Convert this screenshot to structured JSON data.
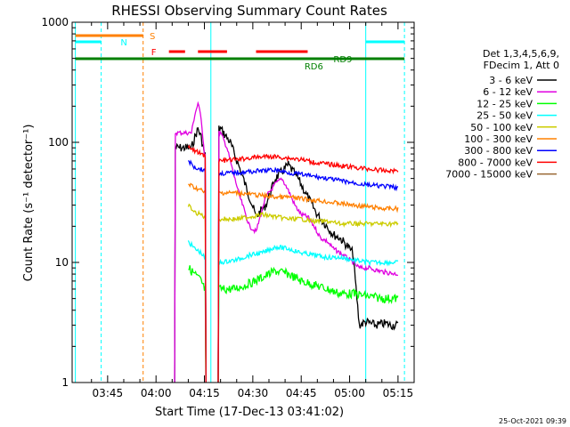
{
  "chart_data": {
    "type": "line",
    "title": "RHESSI Observing Summary Count Rates",
    "xlabel": "Start Time (17-Dec-13 03:41:02)",
    "ylabel": "Count Rate (s⁻¹ detector⁻¹)",
    "yscale": "log",
    "ylim": [
      1,
      1000
    ],
    "xlim_minutes_after_0341": [
      -7,
      99
    ],
    "x_ticks": [
      {
        "label": "03:45",
        "minute": 4
      },
      {
        "label": "04:00",
        "minute": 19
      },
      {
        "label": "04:15",
        "minute": 34
      },
      {
        "label": "04:30",
        "minute": 49
      },
      {
        "label": "04:45",
        "minute": 64
      },
      {
        "label": "05:00",
        "minute": 79
      },
      {
        "label": "05:15",
        "minute": 94
      }
    ],
    "y_ticks": [
      {
        "label": "1",
        "value": 1
      },
      {
        "label": "10",
        "value": 10
      },
      {
        "label": "100",
        "value": 100
      },
      {
        "label": "1000",
        "value": 1000
      }
    ],
    "legend_header": [
      "Det 1,3,4,5,6,9,",
      "FDecim 1, Att 0"
    ],
    "legend_position": "right",
    "series": [
      {
        "name": "3 - 6 keV",
        "color": "#000000",
        "points": [
          [
            19,
            0
          ],
          [
            20,
            0
          ],
          [
            30,
            90
          ],
          [
            31,
            110
          ],
          [
            32,
            130
          ],
          [
            33,
            110
          ],
          [
            34,
            80
          ],
          [
            35,
            0
          ],
          [
            38,
            0
          ],
          [
            39,
            130
          ],
          [
            42,
            100
          ],
          [
            45,
            60
          ],
          [
            48,
            35
          ],
          [
            50,
            24
          ],
          [
            53,
            30
          ],
          [
            56,
            50
          ],
          [
            60,
            65
          ],
          [
            63,
            50
          ],
          [
            66,
            35
          ],
          [
            69,
            25
          ],
          [
            72,
            20
          ],
          [
            74,
            17
          ],
          [
            76,
            16
          ],
          [
            78,
            14
          ],
          [
            80,
            12
          ],
          [
            82,
            3
          ],
          [
            84,
            3.2
          ],
          [
            87,
            3
          ],
          [
            90,
            3.1
          ],
          [
            92,
            3
          ],
          [
            94,
            3
          ]
        ]
      },
      {
        "name": "6 - 12 keV",
        "color": "#e000e0",
        "points": [
          [
            19,
            0
          ],
          [
            20,
            0
          ],
          [
            30,
            120
          ],
          [
            31,
            170
          ],
          [
            32,
            210
          ],
          [
            33,
            160
          ],
          [
            34,
            80
          ],
          [
            35,
            0
          ],
          [
            38,
            0
          ],
          [
            39,
            120
          ],
          [
            41,
            90
          ],
          [
            43,
            55
          ],
          [
            45,
            35
          ],
          [
            48,
            20
          ],
          [
            50,
            18
          ],
          [
            53,
            35
          ],
          [
            56,
            45
          ],
          [
            58,
            50
          ],
          [
            60,
            40
          ],
          [
            62,
            30
          ],
          [
            64,
            25
          ],
          [
            66,
            24
          ],
          [
            68,
            20
          ],
          [
            70,
            16
          ],
          [
            72,
            15
          ],
          [
            74,
            13
          ],
          [
            76,
            12
          ],
          [
            78,
            11
          ],
          [
            80,
            10
          ],
          [
            82,
            9
          ],
          [
            85,
            9
          ],
          [
            88,
            8.5
          ],
          [
            91,
            8.2
          ],
          [
            94,
            8
          ]
        ]
      },
      {
        "name": "12 - 25 keV",
        "color": "#00ff00",
        "points": [
          [
            29,
            9
          ],
          [
            31,
            8
          ],
          [
            33,
            7
          ],
          [
            34,
            6
          ],
          [
            35,
            0
          ],
          [
            38,
            0
          ],
          [
            39,
            6
          ],
          [
            43,
            6
          ],
          [
            47,
            6.5
          ],
          [
            52,
            7.5
          ],
          [
            56,
            8.5
          ],
          [
            60,
            8
          ],
          [
            64,
            7
          ],
          [
            68,
            6.5
          ],
          [
            72,
            6
          ],
          [
            76,
            5.5
          ],
          [
            80,
            5.5
          ],
          [
            85,
            5.2
          ],
          [
            90,
            5
          ],
          [
            94,
            5
          ]
        ]
      },
      {
        "name": "25 - 50 keV",
        "color": "#00ffff",
        "points": [
          [
            29,
            15
          ],
          [
            31,
            13
          ],
          [
            33,
            12
          ],
          [
            34,
            11
          ],
          [
            35,
            0
          ],
          [
            38,
            0
          ],
          [
            39,
            10
          ],
          [
            44,
            10.5
          ],
          [
            48,
            11.5
          ],
          [
            52,
            12
          ],
          [
            56,
            13.5
          ],
          [
            60,
            13
          ],
          [
            64,
            12
          ],
          [
            68,
            11.5
          ],
          [
            72,
            11
          ],
          [
            76,
            11
          ],
          [
            80,
            10.5
          ],
          [
            85,
            10
          ],
          [
            90,
            10
          ],
          [
            94,
            10
          ]
        ]
      },
      {
        "name": "50 - 100 keV",
        "color": "#cccc00",
        "points": [
          [
            29,
            30
          ],
          [
            31,
            26
          ],
          [
            33,
            25
          ],
          [
            34,
            24
          ],
          [
            35,
            0
          ],
          [
            38,
            0
          ],
          [
            39,
            23
          ],
          [
            44,
            23
          ],
          [
            48,
            24
          ],
          [
            52,
            25
          ],
          [
            56,
            24
          ],
          [
            60,
            23
          ],
          [
            64,
            23
          ],
          [
            68,
            22
          ],
          [
            72,
            22
          ],
          [
            76,
            21
          ],
          [
            80,
            21
          ],
          [
            85,
            21
          ],
          [
            90,
            21
          ],
          [
            94,
            21
          ]
        ]
      },
      {
        "name": "100 - 300 keV",
        "color": "#ff8000",
        "points": [
          [
            29,
            45
          ],
          [
            31,
            42
          ],
          [
            33,
            40
          ],
          [
            34,
            38
          ],
          [
            35,
            0
          ],
          [
            38,
            0
          ],
          [
            39,
            38
          ],
          [
            44,
            38
          ],
          [
            48,
            37
          ],
          [
            52,
            36
          ],
          [
            56,
            35
          ],
          [
            60,
            35
          ],
          [
            64,
            34
          ],
          [
            68,
            33
          ],
          [
            72,
            32
          ],
          [
            76,
            31
          ],
          [
            80,
            30
          ],
          [
            85,
            29
          ],
          [
            90,
            28
          ],
          [
            94,
            28
          ]
        ]
      },
      {
        "name": "300 - 800 keV",
        "color": "#0000ff",
        "points": [
          [
            29,
            70
          ],
          [
            31,
            62
          ],
          [
            33,
            60
          ],
          [
            34,
            58
          ],
          [
            35,
            0
          ],
          [
            38,
            0
          ],
          [
            39,
            55
          ],
          [
            44,
            56
          ],
          [
            48,
            57
          ],
          [
            52,
            58
          ],
          [
            56,
            59
          ],
          [
            60,
            56
          ],
          [
            64,
            54
          ],
          [
            68,
            52
          ],
          [
            72,
            50
          ],
          [
            76,
            48
          ],
          [
            80,
            46
          ],
          [
            85,
            44
          ],
          [
            90,
            43
          ],
          [
            94,
            42
          ]
        ]
      },
      {
        "name": "800 - 7000 keV",
        "color": "#ff0000",
        "points": [
          [
            29,
            90
          ],
          [
            31,
            85
          ],
          [
            33,
            80
          ],
          [
            34,
            78
          ],
          [
            35,
            0
          ],
          [
            38,
            0
          ],
          [
            39,
            70
          ],
          [
            44,
            72
          ],
          [
            48,
            74
          ],
          [
            52,
            76
          ],
          [
            56,
            76
          ],
          [
            60,
            74
          ],
          [
            64,
            72
          ],
          [
            68,
            68
          ],
          [
            72,
            66
          ],
          [
            76,
            64
          ],
          [
            80,
            62
          ],
          [
            85,
            60
          ],
          [
            90,
            58
          ],
          [
            94,
            58
          ]
        ]
      },
      {
        "name": "7000 - 15000 keV",
        "color": "#996633",
        "points": []
      }
    ],
    "vertical_lines": [
      {
        "minute": -6,
        "color": "#00ffff",
        "style": "solid"
      },
      {
        "minute": 2,
        "color": "#00ffff",
        "style": "dashed"
      },
      {
        "minute": 15,
        "color": "#ff8000",
        "style": "dashed"
      },
      {
        "minute": 36,
        "color": "#00ffff",
        "style": "solid"
      },
      {
        "minute": 84,
        "color": "#00ffff",
        "style": "solid"
      },
      {
        "minute": 96,
        "color": "#00ffff",
        "style": "dashed"
      }
    ],
    "flag_bars": [
      {
        "label": "S",
        "color": "#ff8000",
        "dashed": false,
        "label_at_minute": 17,
        "segments": [
          [
            -6,
            15
          ]
        ]
      },
      {
        "label": "N",
        "color": "#00ffff",
        "dashed": false,
        "label_at_minute": 8,
        "segments": [
          [
            -6,
            2
          ],
          [
            84,
            96
          ]
        ]
      },
      {
        "label": "F",
        "color": "#ff0000",
        "dashed": true,
        "label_at_minute": 17.5,
        "segments": [
          [
            23,
            28
          ],
          [
            32,
            41
          ],
          [
            50,
            66
          ]
        ]
      },
      {
        "label": "RD9",
        "color": "#008000",
        "dashed": false,
        "label_at_minute": 74,
        "segments": [
          [
            -6,
            96
          ]
        ]
      }
    ],
    "annotations": [
      {
        "text": "RD6",
        "color": "#008000",
        "minute": 65
      }
    ],
    "footer_date": "25-Oct-2021 09:39"
  }
}
